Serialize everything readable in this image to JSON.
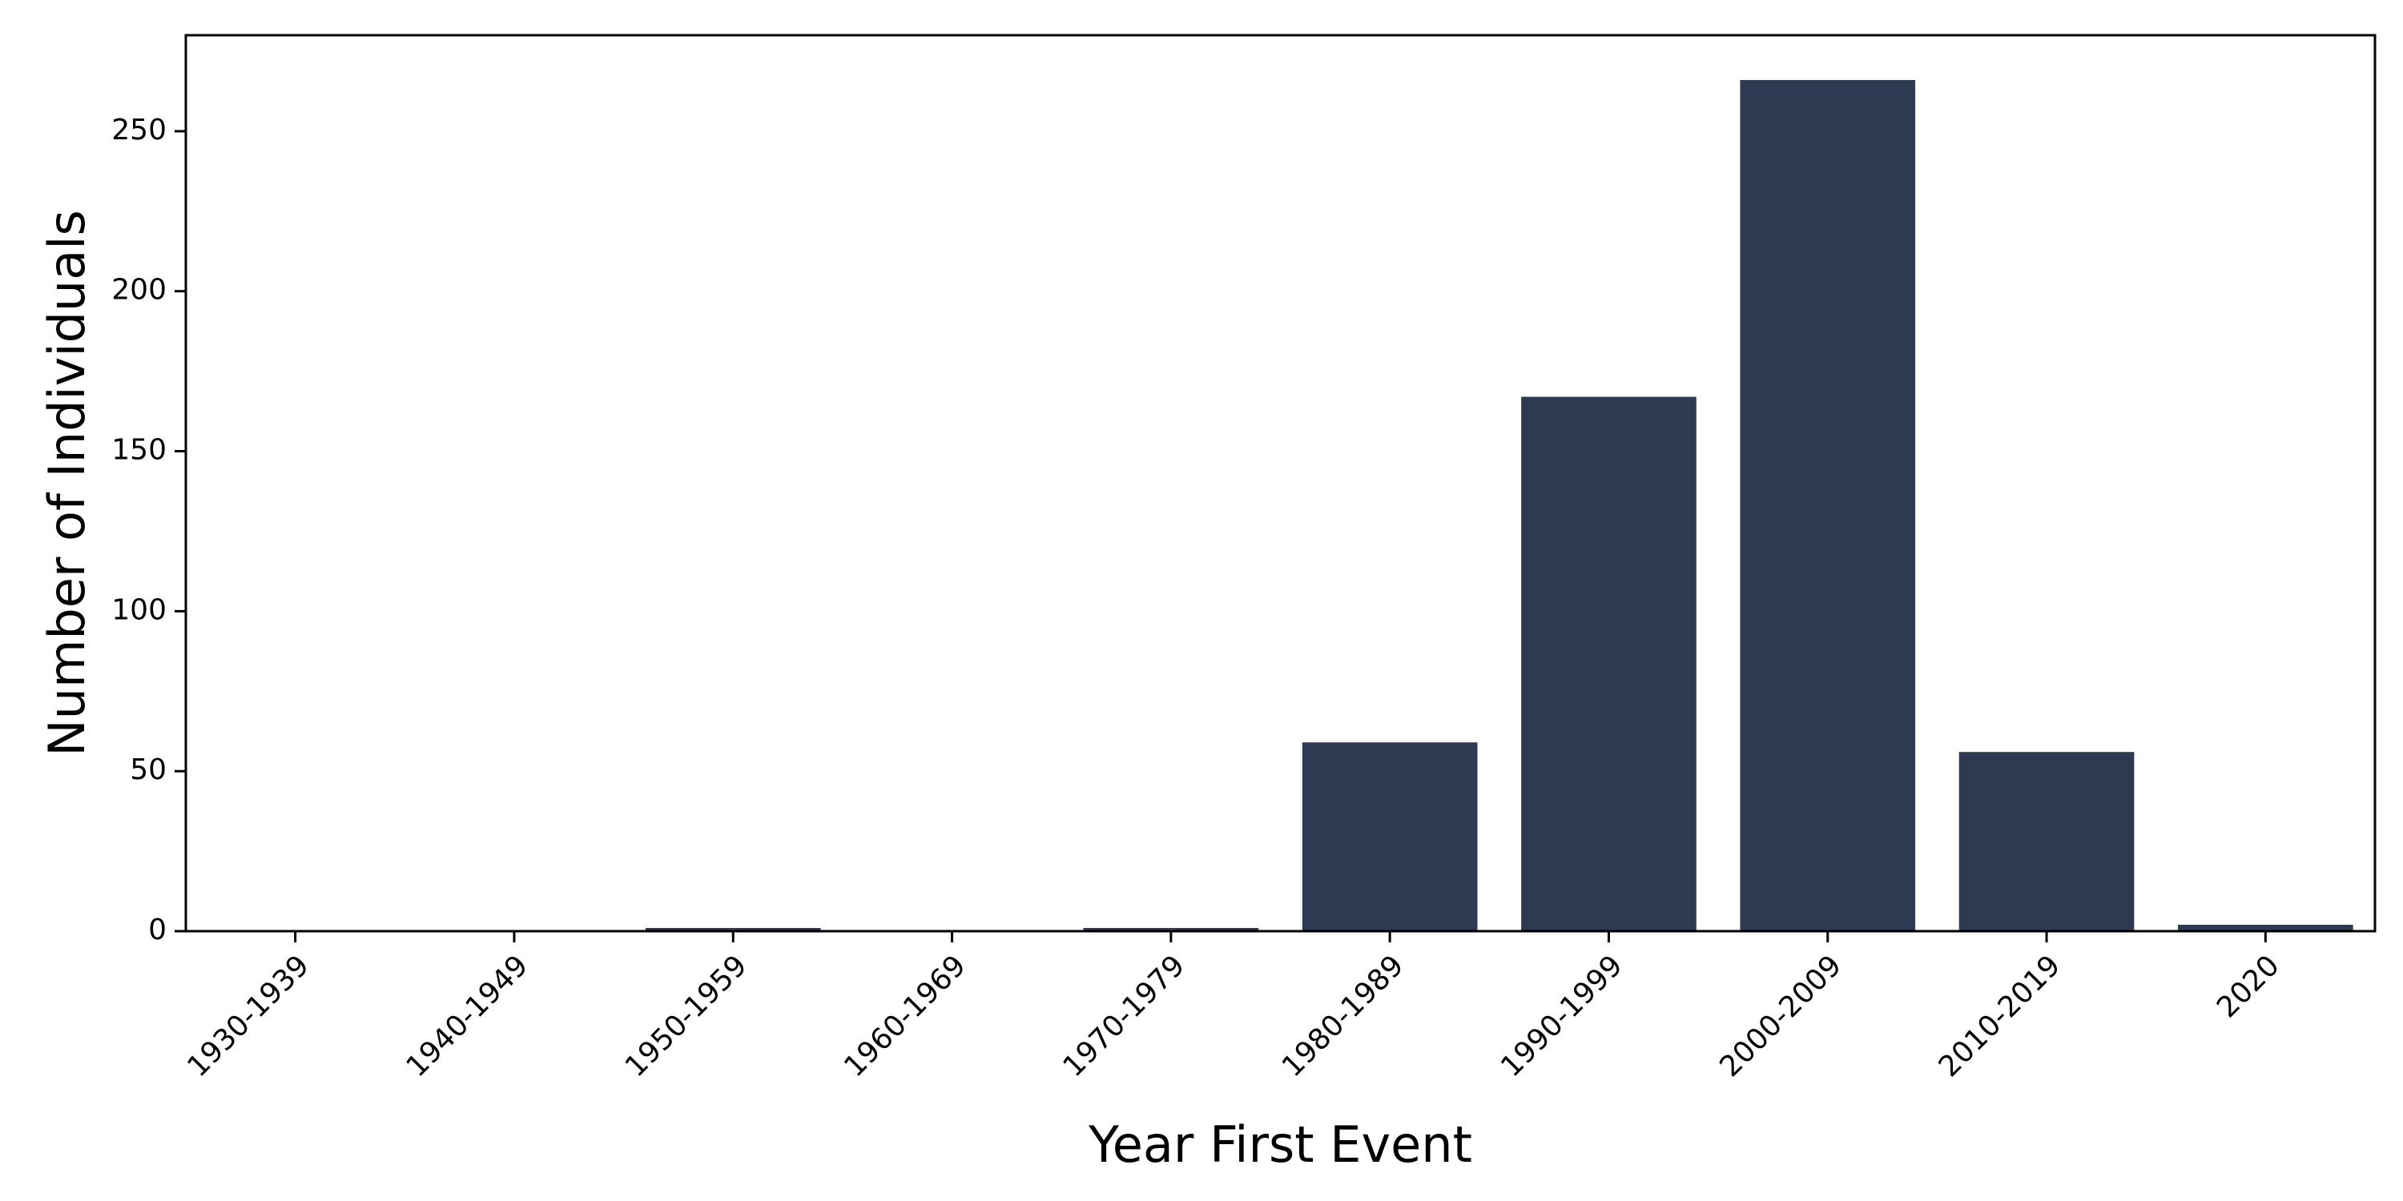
{
  "chart_data": {
    "type": "bar",
    "title": "",
    "xlabel": "Year First Event",
    "ylabel": "Number of Individuals",
    "categories": [
      "1930-1939",
      "1940-1949",
      "1950-1959",
      "1960-1969",
      "1970-1979",
      "1980-1989",
      "1990-1999",
      "2000-2009",
      "2010-2019",
      "2020"
    ],
    "values": [
      0,
      0,
      1,
      0,
      1,
      59,
      167,
      266,
      56,
      2
    ],
    "ylim": [
      0,
      280
    ],
    "yticks": [
      0,
      50,
      100,
      150,
      200,
      250
    ],
    "bar_color": "#2d3a52",
    "grid": false,
    "legend": "none"
  }
}
